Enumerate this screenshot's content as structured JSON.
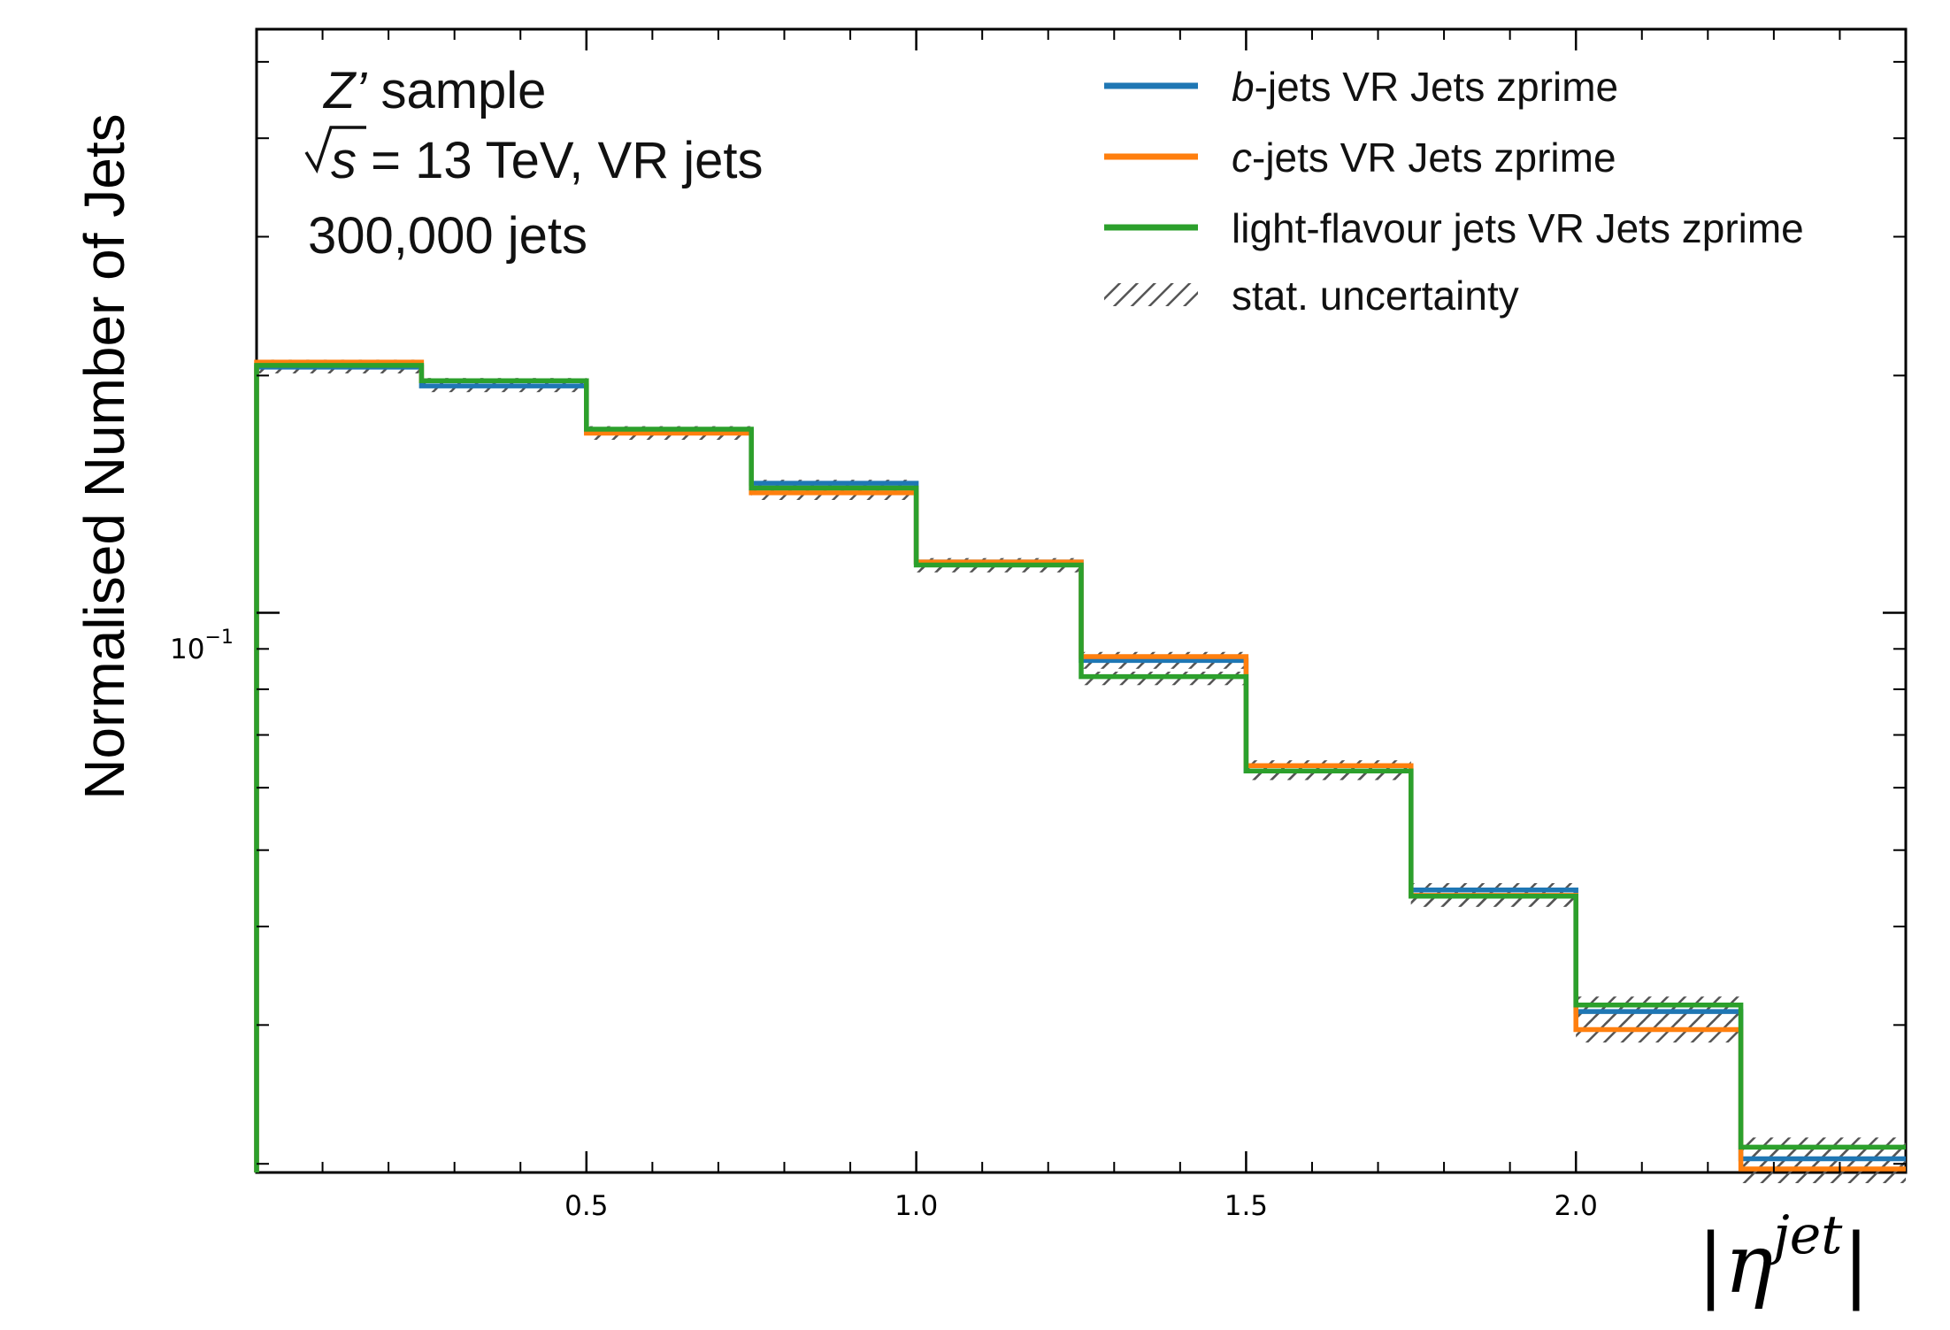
{
  "chart_data": {
    "type": "histogram-step",
    "ylabel": "Normalised Number of Jets",
    "xlabel_math": {
      "pre": "|",
      "var": "η",
      "sup": "jet",
      "post": "|"
    },
    "yscale": "log",
    "xlim": [
      0,
      2.5
    ],
    "ylim": [
      0.0195,
      0.55
    ],
    "x_ticks": [
      0.5,
      1.0,
      1.5,
      2.0
    ],
    "x_tick_labels": [
      "0.5",
      "1.0",
      "1.5",
      "2.0"
    ],
    "x_minor_ticks": [
      0.1,
      0.2,
      0.3,
      0.4,
      0.6,
      0.7,
      0.8,
      0.9,
      1.1,
      1.2,
      1.3,
      1.4,
      1.6,
      1.7,
      1.8,
      1.9,
      2.1,
      2.2,
      2.3,
      2.4
    ],
    "y_major_ticks": [
      0.1
    ],
    "y_tick_base": "10",
    "y_tick_exp": "−1",
    "y_minor_ticks": [
      0.02,
      0.03,
      0.04,
      0.05,
      0.06,
      0.07,
      0.08,
      0.09,
      0.2,
      0.3,
      0.4,
      0.5
    ],
    "bin_edges": [
      0,
      0.25,
      0.5,
      0.75,
      1.0,
      1.25,
      1.5,
      1.75,
      2.0,
      2.25,
      2.5
    ],
    "series": [
      {
        "name": "b-jets VR Jets zprime",
        "color": "#1f77b4",
        "values": [
          0.205,
          0.194,
          0.17,
          0.146,
          0.116,
          0.087,
          0.063,
          0.0445,
          0.0312,
          0.0203
        ],
        "uncert": [
          0.0015,
          0.0015,
          0.0015,
          0.0015,
          0.0013,
          0.0012,
          0.001,
          0.0009,
          0.0008,
          0.0006
        ]
      },
      {
        "name": "c-jets VR Jets zprime",
        "color": "#ff7f0e",
        "values": [
          0.208,
          0.197,
          0.169,
          0.142,
          0.116,
          0.088,
          0.064,
          0.0438,
          0.0296,
          0.0197
        ],
        "uncert": [
          0.0015,
          0.0015,
          0.0015,
          0.0015,
          0.0013,
          0.0012,
          0.001,
          0.0009,
          0.0008,
          0.0006
        ]
      },
      {
        "name": "light-flavour jets VR Jets zprime",
        "color": "#2ca02c",
        "values": [
          0.206,
          0.197,
          0.171,
          0.144,
          0.115,
          0.083,
          0.063,
          0.0437,
          0.0318,
          0.021
        ],
        "uncert": [
          0.0015,
          0.0015,
          0.0015,
          0.0015,
          0.0013,
          0.0012,
          0.001,
          0.0009,
          0.0008,
          0.0006
        ]
      }
    ],
    "uncertainty_label": "stat. uncertainty",
    "annotations": {
      "sample_italic": "Z’",
      "sample_rest": " sample",
      "sqrt_s": "s",
      "energy_rest": " = 13 TeV, VR jets",
      "jets_count": "300,000 jets"
    },
    "legend_position": "top-right"
  }
}
